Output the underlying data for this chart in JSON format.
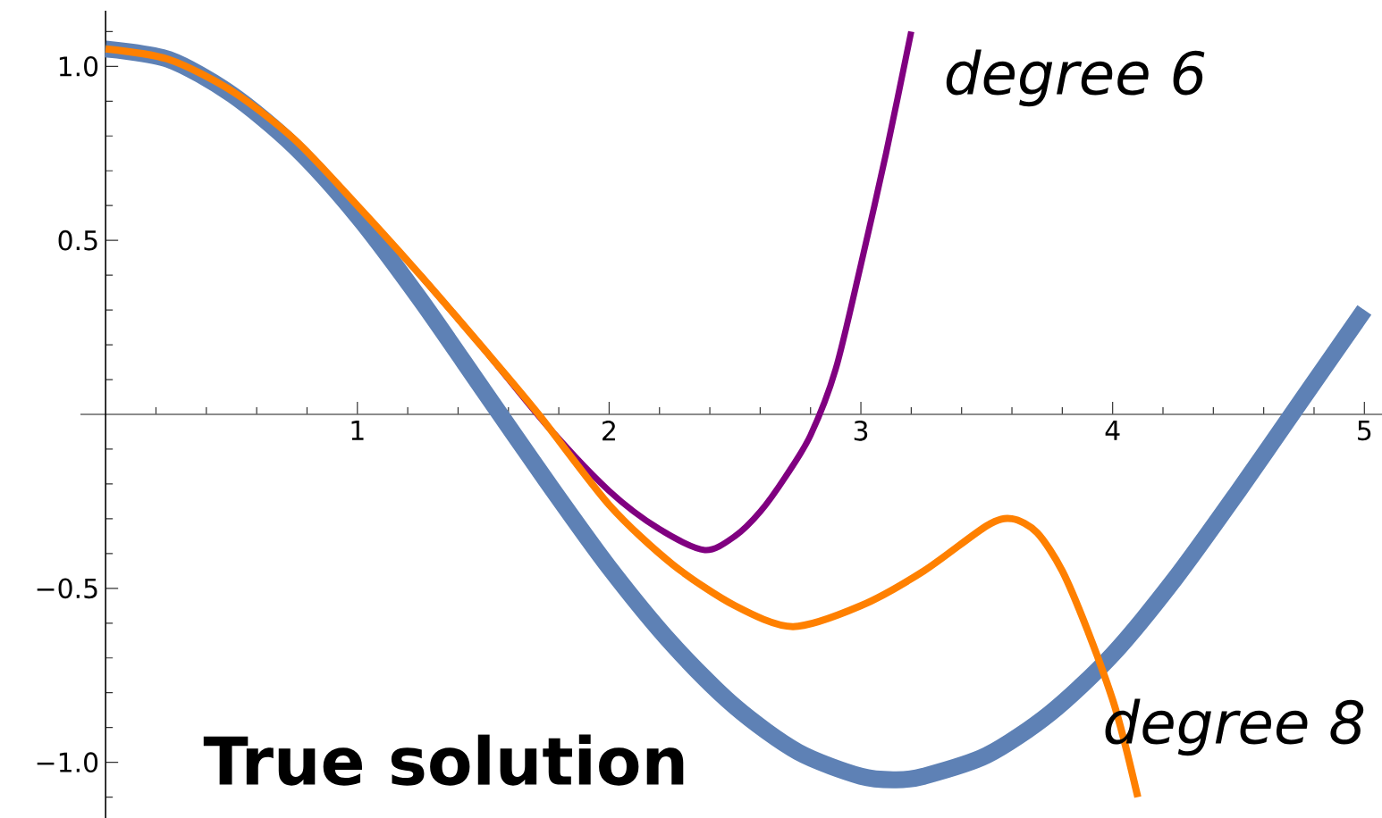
{
  "chart_data": {
    "type": "line",
    "xlim": [
      -0.1,
      5.07
    ],
    "ylim": [
      -1.16,
      1.16
    ],
    "xticks": [
      {
        "value": 0.2,
        "label": null
      },
      {
        "value": 0.4,
        "label": null
      },
      {
        "value": 0.6,
        "label": null
      },
      {
        "value": 0.8,
        "label": null
      },
      1,
      {
        "value": 1.2,
        "label": null
      },
      {
        "value": 1.4,
        "label": null
      },
      {
        "value": 1.6,
        "label": null
      },
      {
        "value": 1.8,
        "label": null
      },
      2,
      {
        "value": 2.2,
        "label": null
      },
      {
        "value": 2.4,
        "label": null
      },
      {
        "value": 2.6,
        "label": null
      },
      {
        "value": 2.8,
        "label": null
      },
      3,
      {
        "value": 3.2,
        "label": null
      },
      {
        "value": 3.4,
        "label": null
      },
      {
        "value": 3.6,
        "label": null
      },
      {
        "value": 3.8,
        "label": null
      },
      4,
      {
        "value": 4.2,
        "label": null
      },
      {
        "value": 4.4,
        "label": null
      },
      {
        "value": 4.6,
        "label": null
      },
      {
        "value": 4.8,
        "label": null
      },
      5
    ],
    "yticks": [
      {
        "value": -1.1,
        "label": null
      },
      {
        "value": -1,
        "label": "−1.0"
      },
      {
        "value": -0.9,
        "label": null
      },
      {
        "value": -0.8,
        "label": null
      },
      {
        "value": -0.7,
        "label": null
      },
      {
        "value": -0.6,
        "label": null
      },
      {
        "value": -0.5,
        "label": "−0.5"
      },
      {
        "value": -0.4,
        "label": null
      },
      {
        "value": -0.3,
        "label": null
      },
      {
        "value": -0.2,
        "label": null
      },
      {
        "value": -0.1,
        "label": null
      },
      {
        "value": 0.1,
        "label": null
      },
      {
        "value": 0.2,
        "label": null
      },
      {
        "value": 0.3,
        "label": null
      },
      {
        "value": 0.4,
        "label": null
      },
      0.5,
      {
        "value": 0.6,
        "label": null
      },
      {
        "value": 0.7,
        "label": null
      },
      {
        "value": 0.8,
        "label": null
      },
      {
        "value": 0.9,
        "label": null
      },
      {
        "value": 1,
        "label": "1.0"
      },
      {
        "value": 1.1,
        "label": null
      }
    ],
    "marker": "none",
    "line_style": "solid",
    "series": [
      {
        "name": "True solution",
        "color": "#5e81b5",
        "x": [
          0,
          0.25,
          0.5,
          0.75,
          1,
          1.25,
          1.5,
          1.75,
          2,
          2.25,
          2.5,
          2.75,
          3,
          3.14,
          3.25,
          3.5,
          3.75,
          4,
          4.25,
          4.5,
          4.75,
          5
        ],
        "values": [
          1.05,
          1.02,
          0.92,
          0.77,
          0.57,
          0.33,
          0.07,
          -0.19,
          -0.44,
          -0.66,
          -0.84,
          -0.97,
          -1.04,
          -1.05,
          -1.04,
          -0.98,
          -0.86,
          -0.69,
          -0.47,
          -0.22,
          0.04,
          0.3
        ]
      },
      {
        "name": "degree 6",
        "color": "#800080",
        "x": [
          1.25,
          1.5,
          1.75,
          2,
          2.2,
          2.38,
          2.5,
          2.6,
          2.7,
          2.8,
          2.9,
          3,
          3.1,
          3.2
        ],
        "values": [
          0.4,
          0.19,
          -0.03,
          -0.22,
          -0.33,
          -0.39,
          -0.35,
          -0.28,
          -0.18,
          -0.06,
          0.13,
          0.43,
          0.75,
          1.1
        ]
      },
      {
        "name": "degree 8",
        "color": "#ff8000",
        "x": [
          0,
          0.25,
          0.5,
          0.75,
          1,
          1.25,
          1.5,
          1.72,
          2,
          2.25,
          2.5,
          2.73,
          3,
          3.25,
          3.5,
          3.6,
          3.7,
          3.8,
          3.9,
          4,
          4.05,
          4.1
        ],
        "values": [
          1.05,
          1.02,
          0.93,
          0.79,
          0.6,
          0.4,
          0.19,
          0,
          -0.26,
          -0.43,
          -0.55,
          -0.61,
          -0.55,
          -0.45,
          -0.32,
          -0.3,
          -0.34,
          -0.45,
          -0.62,
          -0.82,
          -0.95,
          -1.1
        ]
      }
    ]
  }
}
